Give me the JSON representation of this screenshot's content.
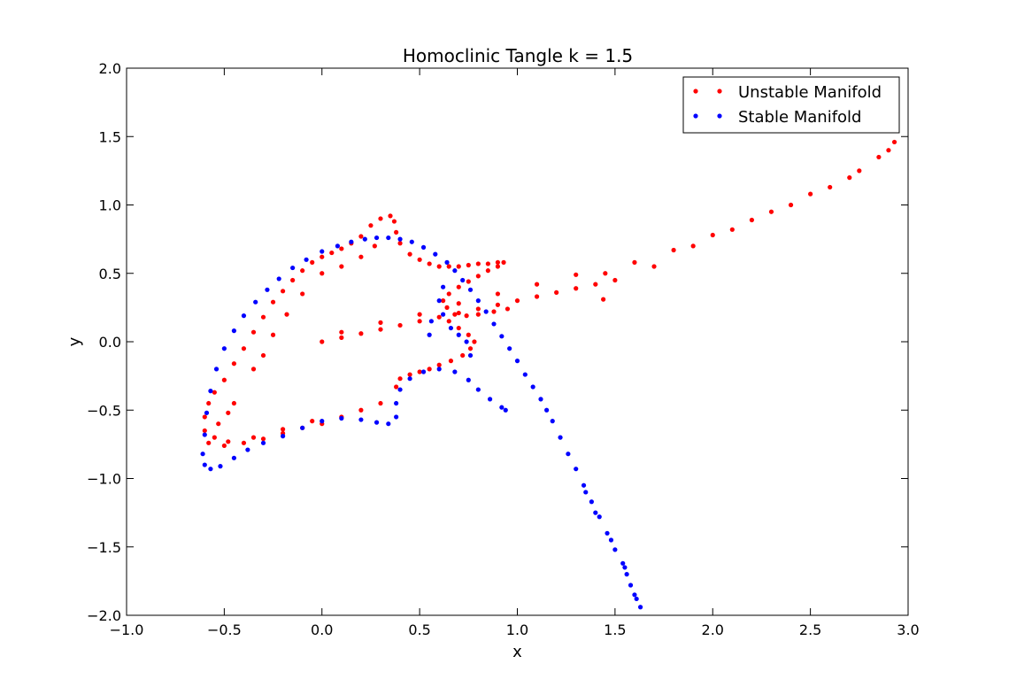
{
  "chart_data": {
    "type": "scatter",
    "title": "Homoclinic Tangle k = 1.5",
    "xlabel": "x",
    "ylabel": "y",
    "xlim": [
      -1.0,
      3.0
    ],
    "ylim": [
      -2.0,
      2.0
    ],
    "x_ticks": [
      -1.0,
      -0.5,
      0.0,
      0.5,
      1.0,
      1.5,
      2.0,
      2.5,
      3.0
    ],
    "y_ticks": [
      -2.0,
      -1.5,
      -1.0,
      -0.5,
      0.0,
      0.5,
      1.0,
      1.5,
      2.0
    ],
    "x_tick_labels": [
      "−1.0",
      "−0.5",
      "0.0",
      "0.5",
      "1.0",
      "1.5",
      "2.0",
      "2.5",
      "3.0"
    ],
    "y_tick_labels": [
      "−2.0",
      "−1.5",
      "−1.0",
      "−0.5",
      "0.0",
      "0.5",
      "1.0",
      "1.5",
      "2.0"
    ],
    "grid": false,
    "legend_position": "top-right",
    "series": [
      {
        "name": "Unstable Manifold",
        "color": "#ff0000",
        "points": [
          [
            0.0,
            0.0
          ],
          [
            0.1,
            0.03
          ],
          [
            0.2,
            0.06
          ],
          [
            0.3,
            0.09
          ],
          [
            0.4,
            0.12
          ],
          [
            0.5,
            0.15
          ],
          [
            0.6,
            0.18
          ],
          [
            0.7,
            0.21
          ],
          [
            0.8,
            0.24
          ],
          [
            0.9,
            0.27
          ],
          [
            1.0,
            0.3
          ],
          [
            1.1,
            0.33
          ],
          [
            1.2,
            0.36
          ],
          [
            1.3,
            0.39
          ],
          [
            1.4,
            0.42
          ],
          [
            1.44,
            0.31
          ],
          [
            0.1,
            0.07
          ],
          [
            0.3,
            0.14
          ],
          [
            0.5,
            0.2
          ],
          [
            0.7,
            0.28
          ],
          [
            0.9,
            0.35
          ],
          [
            1.1,
            0.42
          ],
          [
            1.3,
            0.49
          ],
          [
            1.45,
            0.5
          ],
          [
            1.6,
            0.58
          ],
          [
            1.8,
            0.67
          ],
          [
            2.0,
            0.78
          ],
          [
            2.2,
            0.89
          ],
          [
            2.4,
            1.0
          ],
          [
            2.6,
            1.13
          ],
          [
            2.75,
            1.25
          ],
          [
            2.9,
            1.4
          ],
          [
            2.93,
            1.46
          ],
          [
            1.5,
            0.45
          ],
          [
            1.7,
            0.55
          ],
          [
            1.9,
            0.7
          ],
          [
            2.1,
            0.82
          ],
          [
            2.3,
            0.95
          ],
          [
            2.5,
            1.08
          ],
          [
            2.7,
            1.2
          ],
          [
            2.85,
            1.35
          ],
          [
            0.0,
            -0.6
          ],
          [
            -0.1,
            -0.63
          ],
          [
            -0.2,
            -0.67
          ],
          [
            -0.3,
            -0.71
          ],
          [
            -0.4,
            -0.74
          ],
          [
            -0.5,
            -0.76
          ],
          [
            -0.58,
            -0.74
          ],
          [
            -0.6,
            -0.65
          ],
          [
            -0.6,
            -0.55
          ],
          [
            -0.58,
            -0.45
          ],
          [
            -0.55,
            -0.37
          ],
          [
            -0.5,
            -0.28
          ],
          [
            -0.45,
            -0.16
          ],
          [
            -0.4,
            -0.05
          ],
          [
            -0.35,
            0.07
          ],
          [
            -0.3,
            0.18
          ],
          [
            -0.25,
            0.29
          ],
          [
            -0.2,
            0.37
          ],
          [
            -0.15,
            0.45
          ],
          [
            -0.1,
            0.52
          ],
          [
            -0.05,
            0.58
          ],
          [
            0.0,
            0.62
          ],
          [
            0.05,
            0.65
          ],
          [
            0.1,
            0.68
          ],
          [
            0.15,
            0.72
          ],
          [
            0.2,
            0.77
          ],
          [
            0.25,
            0.85
          ],
          [
            0.3,
            0.9
          ],
          [
            0.35,
            0.92
          ],
          [
            0.37,
            0.88
          ],
          [
            0.38,
            0.8
          ],
          [
            0.4,
            0.72
          ],
          [
            0.45,
            0.64
          ],
          [
            0.5,
            0.6
          ],
          [
            0.55,
            0.57
          ],
          [
            0.6,
            0.55
          ],
          [
            0.65,
            0.55
          ],
          [
            0.7,
            0.55
          ],
          [
            0.75,
            0.56
          ],
          [
            0.8,
            0.57
          ],
          [
            0.85,
            0.57
          ],
          [
            0.9,
            0.58
          ],
          [
            0.93,
            0.58
          ],
          [
            0.9,
            0.55
          ],
          [
            0.85,
            0.52
          ],
          [
            0.8,
            0.48
          ],
          [
            0.75,
            0.44
          ],
          [
            0.7,
            0.4
          ],
          [
            0.65,
            0.35
          ],
          [
            0.62,
            0.3
          ],
          [
            0.64,
            0.25
          ],
          [
            0.68,
            0.2
          ],
          [
            0.74,
            0.19
          ],
          [
            0.8,
            0.2
          ],
          [
            0.88,
            0.22
          ],
          [
            0.95,
            0.24
          ],
          [
            0.65,
            0.15
          ],
          [
            0.7,
            0.1
          ],
          [
            0.75,
            0.05
          ],
          [
            0.78,
            0.0
          ],
          [
            0.76,
            -0.05
          ],
          [
            0.72,
            -0.1
          ],
          [
            0.66,
            -0.14
          ],
          [
            0.6,
            -0.17
          ],
          [
            0.55,
            -0.2
          ],
          [
            0.5,
            -0.22
          ],
          [
            0.45,
            -0.24
          ],
          [
            0.4,
            -0.27
          ],
          [
            0.38,
            -0.33
          ],
          [
            0.3,
            -0.45
          ],
          [
            0.2,
            -0.5
          ],
          [
            0.1,
            -0.55
          ],
          [
            -0.05,
            -0.58
          ],
          [
            -0.2,
            -0.64
          ],
          [
            -0.35,
            -0.7
          ],
          [
            -0.48,
            -0.73
          ],
          [
            -0.55,
            -0.7
          ],
          [
            -0.53,
            -0.6
          ],
          [
            -0.48,
            -0.52
          ],
          [
            -0.45,
            -0.45
          ],
          [
            -0.35,
            -0.2
          ],
          [
            -0.3,
            -0.1
          ],
          [
            -0.25,
            0.05
          ],
          [
            -0.18,
            0.2
          ],
          [
            -0.1,
            0.35
          ],
          [
            0.0,
            0.5
          ],
          [
            0.1,
            0.55
          ],
          [
            0.2,
            0.62
          ],
          [
            0.27,
            0.7
          ]
        ]
      },
      {
        "name": "Stable Manifold",
        "color": "#0000ff",
        "points": [
          [
            1.63,
            -1.94
          ],
          [
            1.6,
            -1.85
          ],
          [
            1.58,
            -1.78
          ],
          [
            1.56,
            -1.7
          ],
          [
            1.54,
            -1.62
          ],
          [
            1.5,
            -1.52
          ],
          [
            1.46,
            -1.4
          ],
          [
            1.42,
            -1.28
          ],
          [
            1.38,
            -1.17
          ],
          [
            1.34,
            -1.05
          ],
          [
            1.3,
            -0.93
          ],
          [
            1.26,
            -0.82
          ],
          [
            1.22,
            -0.7
          ],
          [
            1.18,
            -0.58
          ],
          [
            1.15,
            -0.5
          ],
          [
            1.12,
            -0.42
          ],
          [
            1.08,
            -0.33
          ],
          [
            1.04,
            -0.24
          ],
          [
            1.0,
            -0.14
          ],
          [
            0.96,
            -0.05
          ],
          [
            0.92,
            0.04
          ],
          [
            0.88,
            0.13
          ],
          [
            0.84,
            0.22
          ],
          [
            0.8,
            0.3
          ],
          [
            0.76,
            0.38
          ],
          [
            0.72,
            0.45
          ],
          [
            0.68,
            0.52
          ],
          [
            0.64,
            0.58
          ],
          [
            0.58,
            0.64
          ],
          [
            0.52,
            0.69
          ],
          [
            0.46,
            0.73
          ],
          [
            0.4,
            0.75
          ],
          [
            0.34,
            0.76
          ],
          [
            0.28,
            0.76
          ],
          [
            0.22,
            0.75
          ],
          [
            0.15,
            0.73
          ],
          [
            0.08,
            0.7
          ],
          [
            0.0,
            0.66
          ],
          [
            -0.08,
            0.6
          ],
          [
            -0.15,
            0.54
          ],
          [
            -0.22,
            0.46
          ],
          [
            -0.28,
            0.38
          ],
          [
            -0.34,
            0.29
          ],
          [
            -0.4,
            0.19
          ],
          [
            -0.45,
            0.08
          ],
          [
            -0.5,
            -0.05
          ],
          [
            -0.54,
            -0.2
          ],
          [
            -0.57,
            -0.36
          ],
          [
            -0.59,
            -0.52
          ],
          [
            -0.6,
            -0.68
          ],
          [
            -0.61,
            -0.82
          ],
          [
            -0.6,
            -0.9
          ],
          [
            -0.57,
            -0.93
          ],
          [
            -0.52,
            -0.91
          ],
          [
            -0.45,
            -0.85
          ],
          [
            -0.38,
            -0.79
          ],
          [
            -0.3,
            -0.74
          ],
          [
            -0.2,
            -0.69
          ],
          [
            -0.1,
            -0.63
          ],
          [
            0.0,
            -0.58
          ],
          [
            0.1,
            -0.56
          ],
          [
            0.2,
            -0.57
          ],
          [
            0.28,
            -0.59
          ],
          [
            0.34,
            -0.6
          ],
          [
            0.38,
            -0.55
          ],
          [
            0.38,
            -0.45
          ],
          [
            0.4,
            -0.35
          ],
          [
            0.45,
            -0.27
          ],
          [
            0.52,
            -0.22
          ],
          [
            0.6,
            -0.2
          ],
          [
            0.68,
            -0.22
          ],
          [
            0.75,
            -0.28
          ],
          [
            0.8,
            -0.35
          ],
          [
            0.86,
            -0.42
          ],
          [
            0.92,
            -0.48
          ],
          [
            0.94,
            -0.5
          ],
          [
            1.35,
            -1.1
          ],
          [
            1.4,
            -1.25
          ],
          [
            1.48,
            -1.45
          ],
          [
            1.55,
            -1.65
          ],
          [
            1.61,
            -1.88
          ],
          [
            0.6,
            0.3
          ],
          [
            0.62,
            0.2
          ],
          [
            0.66,
            0.1
          ],
          [
            0.7,
            0.05
          ],
          [
            0.74,
            0.0
          ],
          [
            0.76,
            -0.1
          ],
          [
            0.62,
            0.4
          ],
          [
            0.56,
            0.15
          ],
          [
            0.55,
            0.05
          ]
        ]
      }
    ]
  }
}
